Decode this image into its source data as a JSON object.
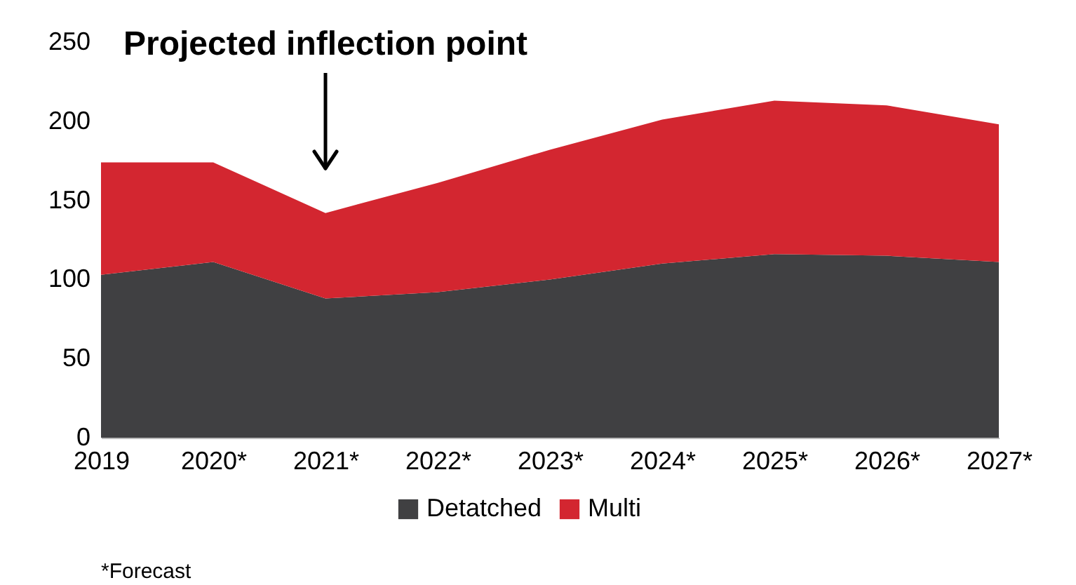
{
  "chart_data": {
    "type": "area",
    "stacked": true,
    "categories": [
      "2019",
      "2020*",
      "2021*",
      "2022*",
      "2023*",
      "2024*",
      "2025*",
      "2026*",
      "2027*"
    ],
    "series": [
      {
        "name": "Detatched",
        "color": "#404042",
        "values": [
          103,
          111,
          88,
          92,
          100,
          110,
          116,
          115,
          111
        ]
      },
      {
        "name": "Multi",
        "color": "#d32630",
        "values": [
          71,
          63,
          54,
          69,
          82,
          91,
          97,
          95,
          87
        ]
      }
    ],
    "ylim": [
      0,
      250
    ],
    "yticks": [
      0,
      50,
      100,
      150,
      200,
      250
    ],
    "grid": false,
    "legend": "bottom",
    "annotations": [
      "Projected inflection point",
      "*Forecast"
    ]
  }
}
